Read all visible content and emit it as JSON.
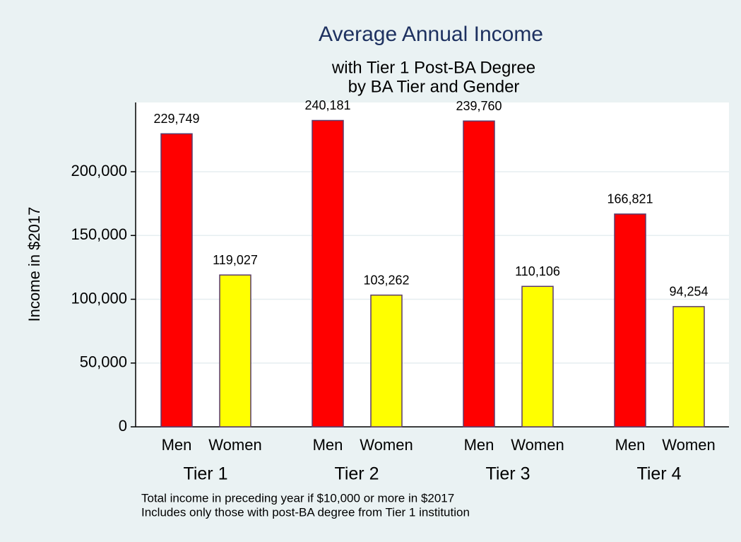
{
  "chart_data": {
    "type": "bar",
    "title": "Average Annual Income",
    "subtitle": [
      "with Tier 1 Post-BA Degree",
      "by BA Tier and Gender"
    ],
    "y_label": "Income in $2017",
    "categories": [
      "Tier 1",
      "Tier 2",
      "Tier 3",
      "Tier 4"
    ],
    "series": [
      {
        "name": "Men",
        "color": "#ff0000",
        "values": [
          229749,
          240181,
          239760,
          166821
        ],
        "value_labels": [
          "229,749",
          "240,181",
          "239,760",
          "166,821"
        ]
      },
      {
        "name": "Women",
        "color": "#ffff00",
        "values": [
          119027,
          103262,
          110106,
          94254
        ],
        "value_labels": [
          "119,027",
          "103,262",
          "110,106",
          "94,254"
        ]
      }
    ],
    "ylim": [
      0,
      254300
    ],
    "yticks": [
      0,
      {
        "value": 50000,
        "label": "50,000"
      },
      {
        "value": 100000,
        "label": "100,000"
      },
      {
        "value": 150000,
        "label": "150,000"
      },
      {
        "value": 200000,
        "label": "200,000"
      }
    ],
    "grid": true,
    "notes": [
      "Total income in preceding year if $10,000 or more in $2017",
      "Includes only those with post-BA degree from Tier 1 institution"
    ]
  }
}
